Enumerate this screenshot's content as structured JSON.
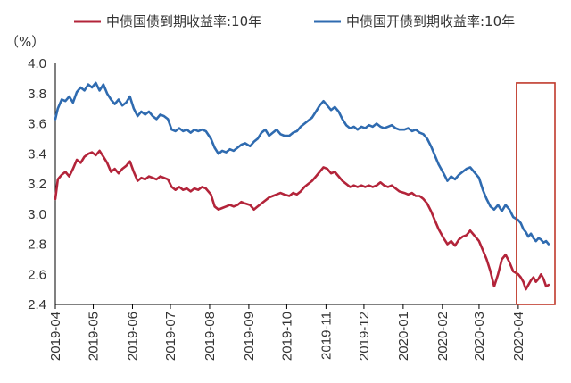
{
  "chart_data": {
    "type": "line",
    "unit_label": "（%）",
    "ylim": [
      2.4,
      4.0
    ],
    "yticks": [
      "4.0",
      "3.8",
      "3.6",
      "3.4",
      "3.2",
      "3.0",
      "2.8",
      "2.6",
      "2.4"
    ],
    "x_ticks": [
      "2019-04",
      "2019-05",
      "2019-06",
      "2019-07",
      "2019-08",
      "2019-09",
      "2019-10",
      "2019-11",
      "2019-12",
      "2020-01",
      "2020-02",
      "2020-03",
      "2020-04"
    ],
    "legend_position": "top",
    "grid": false,
    "colors": {
      "series_1": "#b3243a",
      "series_2": "#2f6bb0",
      "highlight_box": "#c0392b"
    },
    "highlight": {
      "x_start": "2020-04-01",
      "x_end": "2020-04-30",
      "y_min": 2.4,
      "y_max": 3.87
    },
    "series": [
      {
        "name": "中债国债到期收益率:10年",
        "points": [
          [
            "2019-04-01",
            3.1
          ],
          [
            "2019-04-03",
            3.23
          ],
          [
            "2019-04-06",
            3.26
          ],
          [
            "2019-04-09",
            3.28
          ],
          [
            "2019-04-12",
            3.25
          ],
          [
            "2019-04-15",
            3.3
          ],
          [
            "2019-04-18",
            3.36
          ],
          [
            "2019-04-21",
            3.34
          ],
          [
            "2019-04-24",
            3.38
          ],
          [
            "2019-04-27",
            3.4
          ],
          [
            "2019-04-30",
            3.41
          ],
          [
            "2019-05-03",
            3.39
          ],
          [
            "2019-05-06",
            3.42
          ],
          [
            "2019-05-09",
            3.38
          ],
          [
            "2019-05-12",
            3.34
          ],
          [
            "2019-05-15",
            3.28
          ],
          [
            "2019-05-18",
            3.3
          ],
          [
            "2019-05-21",
            3.27
          ],
          [
            "2019-05-24",
            3.3
          ],
          [
            "2019-05-27",
            3.32
          ],
          [
            "2019-05-30",
            3.35
          ],
          [
            "2019-06-02",
            3.28
          ],
          [
            "2019-06-05",
            3.22
          ],
          [
            "2019-06-08",
            3.24
          ],
          [
            "2019-06-11",
            3.23
          ],
          [
            "2019-06-14",
            3.25
          ],
          [
            "2019-06-17",
            3.24
          ],
          [
            "2019-06-20",
            3.23
          ],
          [
            "2019-06-23",
            3.25
          ],
          [
            "2019-06-26",
            3.24
          ],
          [
            "2019-06-29",
            3.23
          ],
          [
            "2019-07-02",
            3.18
          ],
          [
            "2019-07-05",
            3.16
          ],
          [
            "2019-07-08",
            3.18
          ],
          [
            "2019-07-11",
            3.16
          ],
          [
            "2019-07-14",
            3.17
          ],
          [
            "2019-07-17",
            3.15
          ],
          [
            "2019-07-20",
            3.17
          ],
          [
            "2019-07-23",
            3.16
          ],
          [
            "2019-07-26",
            3.18
          ],
          [
            "2019-07-29",
            3.17
          ],
          [
            "2019-08-02",
            3.13
          ],
          [
            "2019-08-05",
            3.05
          ],
          [
            "2019-08-08",
            3.03
          ],
          [
            "2019-08-11",
            3.04
          ],
          [
            "2019-08-14",
            3.05
          ],
          [
            "2019-08-17",
            3.06
          ],
          [
            "2019-08-20",
            3.05
          ],
          [
            "2019-08-23",
            3.06
          ],
          [
            "2019-08-26",
            3.08
          ],
          [
            "2019-08-29",
            3.07
          ],
          [
            "2019-09-02",
            3.06
          ],
          [
            "2019-09-05",
            3.03
          ],
          [
            "2019-09-08",
            3.05
          ],
          [
            "2019-09-11",
            3.07
          ],
          [
            "2019-09-14",
            3.09
          ],
          [
            "2019-09-17",
            3.11
          ],
          [
            "2019-09-20",
            3.12
          ],
          [
            "2019-09-23",
            3.13
          ],
          [
            "2019-09-26",
            3.14
          ],
          [
            "2019-09-29",
            3.13
          ],
          [
            "2019-10-03",
            3.12
          ],
          [
            "2019-10-06",
            3.14
          ],
          [
            "2019-10-09",
            3.13
          ],
          [
            "2019-10-12",
            3.15
          ],
          [
            "2019-10-15",
            3.18
          ],
          [
            "2019-10-18",
            3.2
          ],
          [
            "2019-10-21",
            3.22
          ],
          [
            "2019-10-24",
            3.25
          ],
          [
            "2019-10-27",
            3.28
          ],
          [
            "2019-10-30",
            3.31
          ],
          [
            "2019-11-02",
            3.3
          ],
          [
            "2019-11-05",
            3.27
          ],
          [
            "2019-11-08",
            3.28
          ],
          [
            "2019-11-11",
            3.25
          ],
          [
            "2019-11-14",
            3.22
          ],
          [
            "2019-11-17",
            3.2
          ],
          [
            "2019-11-20",
            3.18
          ],
          [
            "2019-11-23",
            3.19
          ],
          [
            "2019-11-26",
            3.18
          ],
          [
            "2019-11-29",
            3.19
          ],
          [
            "2019-12-02",
            3.18
          ],
          [
            "2019-12-05",
            3.19
          ],
          [
            "2019-12-08",
            3.18
          ],
          [
            "2019-12-11",
            3.19
          ],
          [
            "2019-12-14",
            3.21
          ],
          [
            "2019-12-17",
            3.19
          ],
          [
            "2019-12-20",
            3.18
          ],
          [
            "2019-12-23",
            3.19
          ],
          [
            "2019-12-26",
            3.17
          ],
          [
            "2019-12-29",
            3.15
          ],
          [
            "2020-01-02",
            3.14
          ],
          [
            "2020-01-05",
            3.13
          ],
          [
            "2020-01-08",
            3.14
          ],
          [
            "2020-01-11",
            3.12
          ],
          [
            "2020-01-14",
            3.12
          ],
          [
            "2020-01-17",
            3.1
          ],
          [
            "2020-01-20",
            3.07
          ],
          [
            "2020-01-23",
            3.02
          ],
          [
            "2020-01-26",
            2.96
          ],
          [
            "2020-01-29",
            2.9
          ],
          [
            "2020-02-02",
            2.84
          ],
          [
            "2020-02-05",
            2.8
          ],
          [
            "2020-02-08",
            2.82
          ],
          [
            "2020-02-11",
            2.79
          ],
          [
            "2020-02-14",
            2.83
          ],
          [
            "2020-02-17",
            2.85
          ],
          [
            "2020-02-20",
            2.86
          ],
          [
            "2020-02-23",
            2.89
          ],
          [
            "2020-02-26",
            2.86
          ],
          [
            "2020-03-01",
            2.82
          ],
          [
            "2020-03-04",
            2.76
          ],
          [
            "2020-03-07",
            2.7
          ],
          [
            "2020-03-10",
            2.62
          ],
          [
            "2020-03-13",
            2.52
          ],
          [
            "2020-03-16",
            2.6
          ],
          [
            "2020-03-19",
            2.7
          ],
          [
            "2020-03-22",
            2.73
          ],
          [
            "2020-03-25",
            2.68
          ],
          [
            "2020-03-28",
            2.62
          ],
          [
            "2020-04-01",
            2.6
          ],
          [
            "2020-04-03",
            2.58
          ],
          [
            "2020-04-05",
            2.55
          ],
          [
            "2020-04-07",
            2.5
          ],
          [
            "2020-04-09",
            2.53
          ],
          [
            "2020-04-11",
            2.56
          ],
          [
            "2020-04-13",
            2.58
          ],
          [
            "2020-04-15",
            2.55
          ],
          [
            "2020-04-17",
            2.57
          ],
          [
            "2020-04-19",
            2.6
          ],
          [
            "2020-04-21",
            2.57
          ],
          [
            "2020-04-23",
            2.52
          ],
          [
            "2020-04-25",
            2.53
          ]
        ]
      },
      {
        "name": "中债国开债到期收益率:10年",
        "points": [
          [
            "2019-04-01",
            3.63
          ],
          [
            "2019-04-03",
            3.7
          ],
          [
            "2019-04-06",
            3.76
          ],
          [
            "2019-04-09",
            3.75
          ],
          [
            "2019-04-12",
            3.78
          ],
          [
            "2019-04-15",
            3.74
          ],
          [
            "2019-04-18",
            3.81
          ],
          [
            "2019-04-21",
            3.84
          ],
          [
            "2019-04-24",
            3.82
          ],
          [
            "2019-04-27",
            3.86
          ],
          [
            "2019-04-30",
            3.84
          ],
          [
            "2019-05-03",
            3.87
          ],
          [
            "2019-05-06",
            3.82
          ],
          [
            "2019-05-09",
            3.86
          ],
          [
            "2019-05-12",
            3.8
          ],
          [
            "2019-05-15",
            3.76
          ],
          [
            "2019-05-18",
            3.73
          ],
          [
            "2019-05-21",
            3.76
          ],
          [
            "2019-05-24",
            3.72
          ],
          [
            "2019-05-27",
            3.74
          ],
          [
            "2019-05-30",
            3.78
          ],
          [
            "2019-06-02",
            3.7
          ],
          [
            "2019-06-05",
            3.65
          ],
          [
            "2019-06-08",
            3.68
          ],
          [
            "2019-06-11",
            3.66
          ],
          [
            "2019-06-14",
            3.68
          ],
          [
            "2019-06-17",
            3.65
          ],
          [
            "2019-06-20",
            3.63
          ],
          [
            "2019-06-23",
            3.66
          ],
          [
            "2019-06-26",
            3.65
          ],
          [
            "2019-06-29",
            3.63
          ],
          [
            "2019-07-02",
            3.56
          ],
          [
            "2019-07-05",
            3.55
          ],
          [
            "2019-07-08",
            3.57
          ],
          [
            "2019-07-11",
            3.55
          ],
          [
            "2019-07-14",
            3.56
          ],
          [
            "2019-07-17",
            3.54
          ],
          [
            "2019-07-20",
            3.56
          ],
          [
            "2019-07-23",
            3.55
          ],
          [
            "2019-07-26",
            3.56
          ],
          [
            "2019-07-29",
            3.55
          ],
          [
            "2019-08-02",
            3.5
          ],
          [
            "2019-08-05",
            3.44
          ],
          [
            "2019-08-08",
            3.4
          ],
          [
            "2019-08-11",
            3.42
          ],
          [
            "2019-08-14",
            3.41
          ],
          [
            "2019-08-17",
            3.43
          ],
          [
            "2019-08-20",
            3.42
          ],
          [
            "2019-08-23",
            3.44
          ],
          [
            "2019-08-26",
            3.46
          ],
          [
            "2019-08-29",
            3.47
          ],
          [
            "2019-09-02",
            3.45
          ],
          [
            "2019-09-05",
            3.48
          ],
          [
            "2019-09-08",
            3.5
          ],
          [
            "2019-09-11",
            3.54
          ],
          [
            "2019-09-14",
            3.56
          ],
          [
            "2019-09-17",
            3.52
          ],
          [
            "2019-09-20",
            3.54
          ],
          [
            "2019-09-23",
            3.56
          ],
          [
            "2019-09-26",
            3.53
          ],
          [
            "2019-09-29",
            3.52
          ],
          [
            "2019-10-03",
            3.52
          ],
          [
            "2019-10-06",
            3.54
          ],
          [
            "2019-10-09",
            3.55
          ],
          [
            "2019-10-12",
            3.58
          ],
          [
            "2019-10-15",
            3.6
          ],
          [
            "2019-10-18",
            3.62
          ],
          [
            "2019-10-21",
            3.64
          ],
          [
            "2019-10-24",
            3.68
          ],
          [
            "2019-10-27",
            3.72
          ],
          [
            "2019-10-30",
            3.75
          ],
          [
            "2019-11-02",
            3.72
          ],
          [
            "2019-11-05",
            3.69
          ],
          [
            "2019-11-08",
            3.71
          ],
          [
            "2019-11-11",
            3.68
          ],
          [
            "2019-11-14",
            3.63
          ],
          [
            "2019-11-17",
            3.59
          ],
          [
            "2019-11-20",
            3.57
          ],
          [
            "2019-11-23",
            3.58
          ],
          [
            "2019-11-26",
            3.56
          ],
          [
            "2019-11-29",
            3.58
          ],
          [
            "2019-12-02",
            3.57
          ],
          [
            "2019-12-05",
            3.59
          ],
          [
            "2019-12-08",
            3.58
          ],
          [
            "2019-12-11",
            3.6
          ],
          [
            "2019-12-14",
            3.58
          ],
          [
            "2019-12-17",
            3.57
          ],
          [
            "2019-12-20",
            3.58
          ],
          [
            "2019-12-23",
            3.59
          ],
          [
            "2019-12-26",
            3.57
          ],
          [
            "2019-12-29",
            3.56
          ],
          [
            "2020-01-02",
            3.56
          ],
          [
            "2020-01-05",
            3.57
          ],
          [
            "2020-01-08",
            3.55
          ],
          [
            "2020-01-11",
            3.56
          ],
          [
            "2020-01-14",
            3.54
          ],
          [
            "2020-01-17",
            3.53
          ],
          [
            "2020-01-20",
            3.5
          ],
          [
            "2020-01-23",
            3.45
          ],
          [
            "2020-01-26",
            3.39
          ],
          [
            "2020-01-29",
            3.33
          ],
          [
            "2020-02-02",
            3.27
          ],
          [
            "2020-02-05",
            3.22
          ],
          [
            "2020-02-08",
            3.25
          ],
          [
            "2020-02-11",
            3.23
          ],
          [
            "2020-02-14",
            3.26
          ],
          [
            "2020-02-17",
            3.28
          ],
          [
            "2020-02-20",
            3.3
          ],
          [
            "2020-02-23",
            3.31
          ],
          [
            "2020-02-26",
            3.28
          ],
          [
            "2020-03-01",
            3.24
          ],
          [
            "2020-03-04",
            3.16
          ],
          [
            "2020-03-07",
            3.1
          ],
          [
            "2020-03-10",
            3.05
          ],
          [
            "2020-03-13",
            3.03
          ],
          [
            "2020-03-16",
            3.06
          ],
          [
            "2020-03-19",
            3.02
          ],
          [
            "2020-03-22",
            3.06
          ],
          [
            "2020-03-25",
            3.03
          ],
          [
            "2020-03-28",
            2.98
          ],
          [
            "2020-04-01",
            2.96
          ],
          [
            "2020-04-03",
            2.94
          ],
          [
            "2020-04-05",
            2.9
          ],
          [
            "2020-04-07",
            2.88
          ],
          [
            "2020-04-09",
            2.85
          ],
          [
            "2020-04-11",
            2.87
          ],
          [
            "2020-04-13",
            2.84
          ],
          [
            "2020-04-15",
            2.82
          ],
          [
            "2020-04-17",
            2.84
          ],
          [
            "2020-04-19",
            2.83
          ],
          [
            "2020-04-21",
            2.81
          ],
          [
            "2020-04-23",
            2.82
          ],
          [
            "2020-04-25",
            2.8
          ]
        ]
      }
    ]
  }
}
